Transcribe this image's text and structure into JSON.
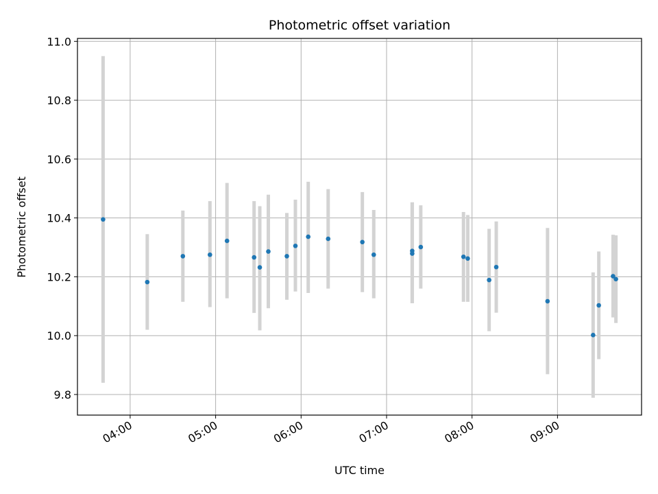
{
  "chart_data": {
    "type": "scatter",
    "title": "Photometric offset variation",
    "xlabel": "UTC time",
    "ylabel": "Photometric offset",
    "xlim": [
      "03:23",
      "09:59"
    ],
    "ylim": [
      9.73,
      11.01
    ],
    "xticks": [
      "04:00",
      "05:00",
      "06:00",
      "07:00",
      "08:00",
      "09:00"
    ],
    "yticks": [
      9.8,
      10.0,
      10.2,
      10.4,
      10.6,
      10.8,
      11.0
    ],
    "ytick_labels": [
      "9.8",
      "10.0",
      "10.2",
      "10.4",
      "10.6",
      "10.8",
      "11.0"
    ],
    "grid": true,
    "point_color": "#1f77b4",
    "errorbar_color": "#d3d3d3",
    "points": [
      {
        "x": "03:41",
        "y": 10.395,
        "ylow": 9.84,
        "yhigh": 10.95
      },
      {
        "x": "04:12",
        "y": 10.182,
        "ylow": 10.02,
        "yhigh": 10.345
      },
      {
        "x": "04:37",
        "y": 10.27,
        "ylow": 10.115,
        "yhigh": 10.425
      },
      {
        "x": "04:56",
        "y": 10.275,
        "ylow": 10.097,
        "yhigh": 10.457
      },
      {
        "x": "05:08",
        "y": 10.322,
        "ylow": 10.127,
        "yhigh": 10.519
      },
      {
        "x": "05:27",
        "y": 10.266,
        "ylow": 10.077,
        "yhigh": 10.457
      },
      {
        "x": "05:31",
        "y": 10.232,
        "ylow": 10.018,
        "yhigh": 10.44
      },
      {
        "x": "05:37",
        "y": 10.286,
        "ylow": 10.093,
        "yhigh": 10.479
      },
      {
        "x": "05:50",
        "y": 10.27,
        "ylow": 10.122,
        "yhigh": 10.417
      },
      {
        "x": "05:56",
        "y": 10.305,
        "ylow": 10.15,
        "yhigh": 10.462
      },
      {
        "x": "06:05",
        "y": 10.336,
        "ylow": 10.145,
        "yhigh": 10.523
      },
      {
        "x": "06:19",
        "y": 10.329,
        "ylow": 10.16,
        "yhigh": 10.498
      },
      {
        "x": "06:43",
        "y": 10.318,
        "ylow": 10.148,
        "yhigh": 10.488
      },
      {
        "x": "06:51",
        "y": 10.275,
        "ylow": 10.127,
        "yhigh": 10.427
      },
      {
        "x": "07:18",
        "y": 10.288,
        "ylow": 10.11,
        "yhigh": 10.453
      },
      {
        "x": "07:18",
        "y": 10.279,
        "ylow": 10.11,
        "yhigh": 10.453
      },
      {
        "x": "07:24",
        "y": 10.301,
        "ylow": 10.16,
        "yhigh": 10.443
      },
      {
        "x": "07:54",
        "y": 10.268,
        "ylow": 10.115,
        "yhigh": 10.42
      },
      {
        "x": "07:57",
        "y": 10.262,
        "ylow": 10.115,
        "yhigh": 10.41
      },
      {
        "x": "08:12",
        "y": 10.189,
        "ylow": 10.015,
        "yhigh": 10.363
      },
      {
        "x": "08:17",
        "y": 10.233,
        "ylow": 10.078,
        "yhigh": 10.388
      },
      {
        "x": "08:53",
        "y": 10.117,
        "ylow": 9.869,
        "yhigh": 10.366
      },
      {
        "x": "09:25",
        "y": 10.002,
        "ylow": 9.789,
        "yhigh": 10.215
      },
      {
        "x": "09:29",
        "y": 10.103,
        "ylow": 9.92,
        "yhigh": 10.286
      },
      {
        "x": "09:39",
        "y": 10.202,
        "ylow": 10.062,
        "yhigh": 10.343
      },
      {
        "x": "09:41",
        "y": 10.192,
        "ylow": 10.043,
        "yhigh": 10.341
      }
    ]
  }
}
